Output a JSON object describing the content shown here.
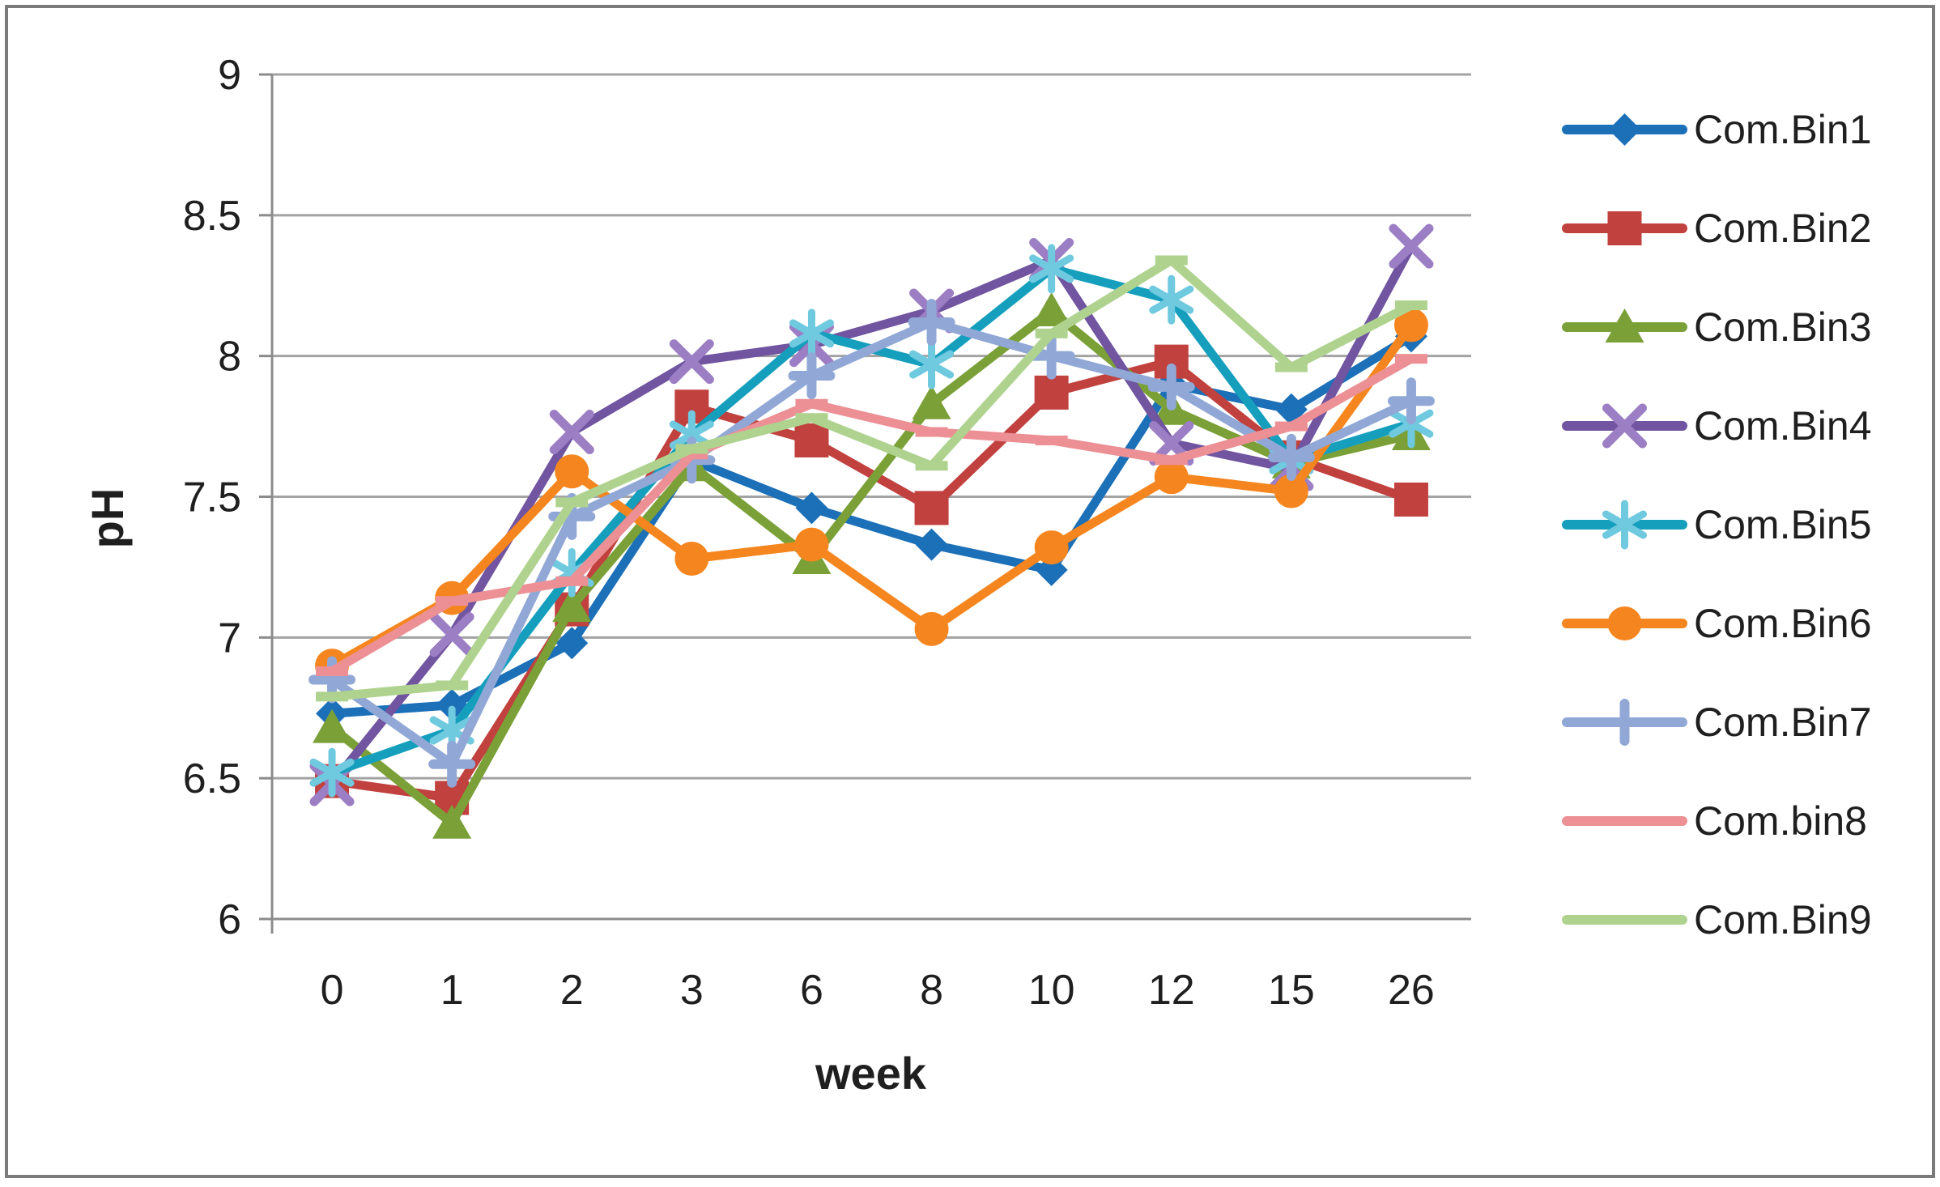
{
  "chart_data": {
    "type": "line",
    "title": "",
    "xlabel": "week",
    "ylabel": "pH",
    "x_categories": [
      "0",
      "1",
      "2",
      "3",
      "6",
      "8",
      "10",
      "12",
      "15",
      "26"
    ],
    "ylim": [
      6,
      9
    ],
    "y_ticks": [
      "6",
      "6.5",
      "7",
      "7.5",
      "8",
      "8.5",
      "9"
    ],
    "grid": true,
    "legend_position": "right",
    "gridline_color": "#a3a3a3",
    "axis_line_color": "#8c8c8c",
    "border_color": "#7b7b7b",
    "series": [
      {
        "name": "Com.Bin1",
        "color": "#1c70b8",
        "marker": "diamond",
        "marker_color": "#1c70b8",
        "values": [
          6.73,
          6.76,
          6.98,
          7.63,
          7.46,
          7.33,
          7.24,
          7.9,
          7.81,
          8.07
        ]
      },
      {
        "name": "Com.Bin2",
        "color": "#c0413e",
        "marker": "square",
        "marker_color": "#c0413e",
        "values": [
          6.49,
          6.43,
          7.1,
          7.82,
          7.7,
          7.46,
          7.87,
          7.98,
          7.64,
          7.49
        ]
      },
      {
        "name": "Com.Bin3",
        "color": "#7aa037",
        "marker": "triangle",
        "marker_color": "#7aa037",
        "values": [
          6.68,
          6.34,
          7.11,
          7.61,
          7.28,
          7.83,
          8.16,
          7.81,
          7.62,
          7.72
        ]
      },
      {
        "name": "Com.Bin4",
        "color": "#7155a0",
        "marker": "x",
        "marker_color": "#9b7ec4",
        "values": [
          6.48,
          7.01,
          7.73,
          7.98,
          8.04,
          8.16,
          8.34,
          7.69,
          7.6,
          8.39
        ]
      },
      {
        "name": "Com.Bin5",
        "color": "#169fbd",
        "marker": "asterisk",
        "marker_color": "#6fc9df",
        "values": [
          6.52,
          6.67,
          7.23,
          7.72,
          8.08,
          7.97,
          8.31,
          8.2,
          7.63,
          7.76
        ]
      },
      {
        "name": "Com.Bin6",
        "color": "#f5861f",
        "marker": "circle",
        "marker_color": "#f5861f",
        "values": [
          6.9,
          7.14,
          7.59,
          7.28,
          7.33,
          7.03,
          7.32,
          7.57,
          7.52,
          8.11
        ]
      },
      {
        "name": "Com.Bin7",
        "color": "#91a8d7",
        "marker": "plus",
        "marker_color": "#91a8d7",
        "values": [
          6.85,
          6.55,
          7.43,
          7.63,
          7.93,
          8.12,
          8.0,
          7.89,
          7.64,
          7.84
        ]
      },
      {
        "name": "Com.bin8",
        "color": "#ec9095",
        "marker": "dash",
        "marker_color": "#ec9095",
        "values": [
          6.88,
          7.13,
          7.2,
          7.65,
          7.83,
          7.73,
          7.7,
          7.63,
          7.75,
          7.99
        ]
      },
      {
        "name": "Com.Bin9",
        "color": "#afd38f",
        "marker": "dash",
        "marker_color": "#afd38f",
        "values": [
          6.79,
          6.83,
          7.48,
          7.67,
          7.78,
          7.61,
          8.08,
          8.34,
          7.96,
          8.18
        ]
      }
    ]
  }
}
